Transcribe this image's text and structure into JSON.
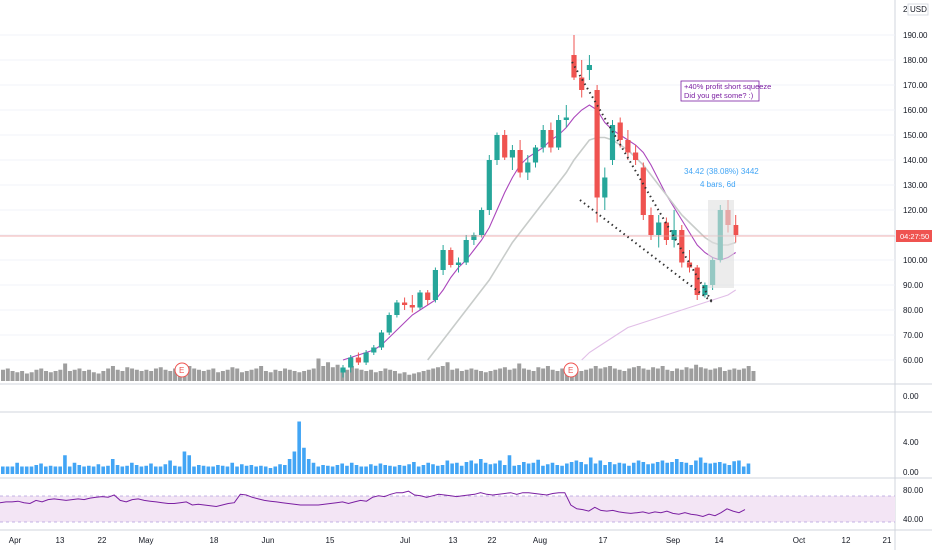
{
  "header": {
    "currency": "USD",
    "top_label": "2"
  },
  "annotations": {
    "note_line1": "+40% profit short squeeze",
    "note_line2": "Did you get some? :)",
    "measure_line1": "34.42 (38.08%) 3442",
    "measure_line2": "4 bars, 6d",
    "last_price": "04:27:50",
    "earnings_marker": "E"
  },
  "colors": {
    "up": "#26a69a",
    "down": "#ef5350",
    "ma_fast": "#ab47bc",
    "ma_slow": "#c8ccca",
    "ma_long": "#e1bee7",
    "volume": "#9e9e9e",
    "hist": "#42a5f5",
    "rsi_line": "#7b1fa2",
    "rsi_band": "#f3e5f5",
    "price_line": "#ef9a9a",
    "trendline": "#333333",
    "note_border": "#7b1fa2"
  },
  "chart_data": [
    {
      "type": "candlestick",
      "title": "",
      "x": [
        "Apr",
        "13",
        "22",
        "May",
        "18",
        "Jun",
        "15",
        "Jul",
        "13",
        "22",
        "Aug",
        "17",
        "Sep",
        "14",
        "Oct",
        "12",
        "21"
      ],
      "y_axis": {
        "ticks": [
          60,
          70,
          80,
          90,
          100,
          110,
          120,
          130,
          140,
          150,
          160,
          170,
          180,
          190
        ],
        "labels": [
          "60.00",
          "70.00",
          "80.00",
          "90.00",
          "100.00",
          "110.00",
          "120.00",
          "130.00",
          "140.00",
          "150.00",
          "160.00",
          "170.00",
          "180.00",
          "190.00"
        ],
        "ylim": [
          52,
          196
        ],
        "grid": true
      },
      "candles": [
        {
          "o": 55,
          "h": 58,
          "l": 53,
          "c": 57
        },
        {
          "o": 57,
          "h": 62,
          "l": 55,
          "c": 61
        },
        {
          "o": 61,
          "h": 63,
          "l": 58,
          "c": 59
        },
        {
          "o": 59,
          "h": 64,
          "l": 58,
          "c": 63
        },
        {
          "o": 63,
          "h": 66,
          "l": 62,
          "c": 65
        },
        {
          "o": 65,
          "h": 72,
          "l": 64,
          "c": 71
        },
        {
          "o": 71,
          "h": 79,
          "l": 70,
          "c": 78
        },
        {
          "o": 78,
          "h": 84,
          "l": 77,
          "c": 83
        },
        {
          "o": 83,
          "h": 85,
          "l": 80,
          "c": 82
        },
        {
          "o": 82,
          "h": 86,
          "l": 79,
          "c": 81
        },
        {
          "o": 81,
          "h": 88,
          "l": 80,
          "c": 87
        },
        {
          "o": 87,
          "h": 88,
          "l": 82,
          "c": 84
        },
        {
          "o": 84,
          "h": 97,
          "l": 83,
          "c": 96
        },
        {
          "o": 96,
          "h": 106,
          "l": 94,
          "c": 104
        },
        {
          "o": 104,
          "h": 105,
          "l": 97,
          "c": 98
        },
        {
          "o": 98,
          "h": 101,
          "l": 95,
          "c": 99
        },
        {
          "o": 99,
          "h": 110,
          "l": 98,
          "c": 108
        },
        {
          "o": 108,
          "h": 111,
          "l": 106,
          "c": 110
        },
        {
          "o": 110,
          "h": 121,
          "l": 109,
          "c": 120
        },
        {
          "o": 120,
          "h": 142,
          "l": 118,
          "c": 140
        },
        {
          "o": 140,
          "h": 151,
          "l": 138,
          "c": 150
        },
        {
          "o": 150,
          "h": 152,
          "l": 140,
          "c": 141
        },
        {
          "o": 141,
          "h": 146,
          "l": 136,
          "c": 144
        },
        {
          "o": 144,
          "h": 148,
          "l": 133,
          "c": 135
        },
        {
          "o": 135,
          "h": 142,
          "l": 132,
          "c": 139
        },
        {
          "o": 139,
          "h": 146,
          "l": 137,
          "c": 145
        },
        {
          "o": 145,
          "h": 154,
          "l": 143,
          "c": 152
        },
        {
          "o": 152,
          "h": 155,
          "l": 143,
          "c": 145
        },
        {
          "o": 145,
          "h": 158,
          "l": 144,
          "c": 156
        },
        {
          "o": 156,
          "h": 162,
          "l": 153,
          "c": 157
        },
        {
          "o": 182,
          "h": 190,
          "l": 172,
          "c": 173
        },
        {
          "o": 173,
          "h": 180,
          "l": 165,
          "c": 168
        },
        {
          "o": 176,
          "h": 182,
          "l": 172,
          "c": 178
        },
        {
          "o": 168,
          "h": 170,
          "l": 115,
          "c": 125
        },
        {
          "o": 125,
          "h": 137,
          "l": 120,
          "c": 133
        },
        {
          "o": 140,
          "h": 156,
          "l": 138,
          "c": 154
        },
        {
          "o": 155,
          "h": 157,
          "l": 145,
          "c": 148
        },
        {
          "o": 148,
          "h": 152,
          "l": 140,
          "c": 143
        },
        {
          "o": 143,
          "h": 146,
          "l": 138,
          "c": 140
        },
        {
          "o": 137,
          "h": 139,
          "l": 116,
          "c": 118
        },
        {
          "o": 118,
          "h": 121,
          "l": 108,
          "c": 110
        },
        {
          "o": 110,
          "h": 118,
          "l": 105,
          "c": 115
        },
        {
          "o": 115,
          "h": 117,
          "l": 106,
          "c": 108
        },
        {
          "o": 108,
          "h": 120,
          "l": 105,
          "c": 112
        },
        {
          "o": 112,
          "h": 114,
          "l": 97,
          "c": 99
        },
        {
          "o": 99,
          "h": 104,
          "l": 95,
          "c": 97
        },
        {
          "o": 97,
          "h": 98,
          "l": 84,
          "c": 86
        },
        {
          "o": 86,
          "h": 91,
          "l": 85,
          "c": 90
        },
        {
          "o": 90,
          "h": 101,
          "l": 88,
          "c": 100
        },
        {
          "o": 100,
          "h": 122,
          "l": 99,
          "c": 120
        },
        {
          "o": 120,
          "h": 124,
          "l": 111,
          "c": 114
        },
        {
          "o": 114,
          "h": 118,
          "l": 107,
          "c": 110
        }
      ],
      "moving_averages": [
        {
          "period": "fast",
          "values": [
            60,
            61,
            62,
            63,
            64,
            66,
            69,
            72,
            75,
            78,
            80,
            82,
            84,
            88,
            93,
            97,
            100,
            104,
            108,
            113,
            120,
            127,
            133,
            138,
            141,
            143,
            145,
            148,
            150,
            153,
            157,
            160,
            162,
            160,
            155,
            152,
            150,
            148,
            146,
            143,
            138,
            132,
            126,
            121,
            116,
            111,
            106,
            103,
            101,
            100,
            101,
            103
          ]
        },
        {
          "period": "slow",
          "values": [
            null,
            null,
            null,
            null,
            null,
            null,
            null,
            null,
            null,
            null,
            null,
            60,
            64,
            68,
            72,
            76,
            80,
            84,
            88,
            92,
            97,
            102,
            107,
            111,
            115,
            119,
            123,
            127,
            131,
            135,
            140,
            144,
            148,
            149,
            149,
            148,
            146,
            144,
            141,
            138,
            134,
            130,
            126,
            122,
            118,
            115,
            112,
            109,
            107,
            106,
            106,
            107
          ]
        },
        {
          "period": "long",
          "values": [
            null,
            null,
            null,
            null,
            null,
            null,
            null,
            null,
            null,
            null,
            null,
            null,
            null,
            null,
            null,
            null,
            null,
            null,
            null,
            null,
            null,
            null,
            null,
            null,
            null,
            null,
            null,
            null,
            null,
            null,
            null,
            60,
            63,
            65,
            67,
            69,
            71,
            73,
            74,
            75,
            76,
            77,
            78,
            79,
            80,
            81,
            82,
            83,
            84,
            85,
            86,
            88
          ]
        }
      ]
    },
    {
      "type": "bar",
      "title": "volume",
      "values": [
        9,
        10,
        8,
        7,
        8,
        6,
        7,
        9,
        10,
        8,
        7,
        8,
        9,
        14,
        8,
        9,
        10,
        8,
        9,
        7,
        6,
        8,
        10,
        12,
        9,
        8,
        11,
        10,
        9,
        8,
        9,
        8,
        10,
        11,
        9,
        8,
        10,
        9,
        8,
        12,
        10,
        9,
        8,
        9,
        10,
        7,
        8,
        9,
        11,
        10,
        7,
        8,
        9,
        10,
        12,
        8,
        7,
        9,
        8,
        10,
        9,
        8,
        7,
        8,
        9,
        10,
        18,
        12,
        15,
        11,
        13,
        10,
        9,
        12,
        10,
        9,
        8,
        9,
        7,
        8,
        10,
        9,
        8,
        6,
        7,
        5,
        6,
        7,
        8,
        9,
        10,
        11,
        12,
        15,
        9,
        10,
        8,
        9,
        10,
        9,
        8,
        7,
        8,
        9,
        10,
        11,
        9,
        10,
        14,
        10,
        9,
        8,
        11,
        10,
        12,
        9,
        8,
        10,
        11,
        9,
        10,
        8,
        9,
        10,
        12,
        10,
        11,
        12,
        10,
        9,
        8,
        10,
        11,
        12,
        10,
        9,
        11,
        10,
        12,
        9,
        8,
        10,
        9,
        11,
        10,
        13,
        11,
        10,
        9,
        10,
        11,
        8,
        9,
        10,
        9,
        10,
        12,
        8
      ],
      "ylim": [
        0,
        80
      ]
    },
    {
      "type": "bar",
      "title": "histogram",
      "y_axis": {
        "labels": [
          "0.00",
          "4.00",
          "0.00"
        ]
      },
      "values": [
        1,
        1,
        1,
        1.5,
        1,
        1,
        1,
        1.2,
        1.4,
        1,
        1.1,
        1,
        1,
        2.5,
        1,
        1.5,
        1.2,
        1,
        1.1,
        1,
        1.3,
        1,
        1.1,
        2,
        1.2,
        1,
        1.1,
        1.5,
        1.2,
        1,
        1.1,
        1.4,
        1,
        1,
        1.3,
        1.8,
        1.1,
        1,
        3,
        2.5,
        1,
        1.2,
        1.1,
        1,
        1,
        1.2,
        1.1,
        1,
        1.5,
        1,
        1.3,
        1.1,
        1.2,
        1,
        1.1,
        1,
        0.8,
        1,
        1.3,
        1.2,
        2,
        3,
        7,
        3.5,
        2,
        1.5,
        1,
        1.2,
        1.1,
        1,
        1.2,
        1.4,
        1.1,
        1.5,
        1.2,
        1,
        1,
        1.3,
        1.1,
        1.4,
        1.2,
        1.1,
        1,
        1.2,
        1.1,
        1.3,
        1.6,
        1,
        1.2,
        1.5,
        1.3,
        1.1,
        1.2,
        1.8,
        1.4,
        1.5,
        1.1,
        1.6,
        1.8,
        1.4,
        2,
        1.5,
        1.3,
        1.4,
        1.8,
        1.2,
        2.5,
        1.1,
        1.2,
        1.6,
        1.4,
        1.5,
        1.9,
        1.1,
        1.3,
        1.5,
        1.2,
        1.1,
        1.4,
        1.6,
        1.8,
        1.6,
        1.3,
        2.2,
        1.4,
        1.8,
        1.2,
        1.6,
        1.3,
        1.5,
        1.4,
        1.1,
        1.5,
        1.8,
        1.6,
        1.3,
        1.4,
        1.6,
        1.8,
        1.5,
        1.6,
        2,
        1.6,
        1.5,
        1.2,
        1.8,
        2.2,
        1.5,
        1.4,
        1.5,
        1.6,
        1.4,
        1.2,
        1.7,
        1.8,
        1,
        1.4
      ],
      "ylim": [
        0,
        8
      ]
    },
    {
      "type": "line",
      "title": "rsi",
      "y_axis": {
        "ticks": [
          40,
          80
        ],
        "labels": [
          "40.00",
          "80.00"
        ],
        "ylim": [
          30,
          90
        ]
      },
      "band": [
        40,
        70
      ],
      "values": [
        63,
        64,
        64,
        65,
        63,
        62,
        66,
        64,
        67,
        68,
        67,
        66,
        67,
        68,
        67,
        69,
        70,
        71,
        70,
        73,
        66,
        64,
        67,
        68,
        66,
        65,
        64,
        63,
        62,
        62,
        63,
        64,
        60,
        61,
        60,
        59,
        58,
        60,
        62,
        63,
        74,
        73,
        70,
        68,
        66,
        65,
        64,
        63,
        62,
        61,
        60,
        60,
        60,
        60,
        61,
        62,
        63,
        64,
        62,
        64,
        66,
        65,
        70,
        72,
        71,
        74,
        76,
        76,
        78,
        73,
        72,
        70,
        72,
        74,
        73,
        72,
        71,
        72,
        73,
        74,
        76,
        74,
        73,
        74,
        75,
        76,
        74,
        76,
        76,
        75,
        74,
        73,
        75,
        76,
        76,
        60,
        55,
        54,
        52,
        57,
        53,
        52,
        53,
        51,
        50,
        49,
        50,
        51,
        49,
        51,
        50,
        52,
        49,
        48,
        50,
        48,
        47,
        45,
        48,
        46,
        50,
        55,
        52,
        50,
        54
      ]
    }
  ],
  "x_axis_labels": [
    "Apr",
    "13",
    "22",
    "May",
    "18",
    "Jun",
    "15",
    "Jul",
    "13",
    "22",
    "Aug",
    "17",
    "Sep",
    "14",
    "Oct",
    "12",
    "21"
  ],
  "pane_labels": {
    "volume_axis": [
      "0.00"
    ],
    "hist_axis": [
      "4.00",
      "0.00"
    ],
    "rsi_axis": [
      "80.00",
      "40.00"
    ]
  }
}
